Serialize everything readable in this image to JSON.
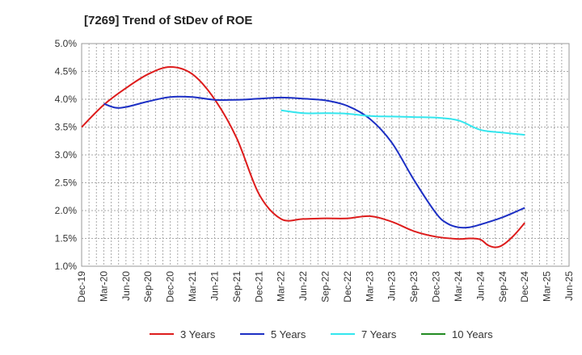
{
  "chart_data": {
    "type": "line",
    "title": "[7269]  Trend of StDev of ROE",
    "xlabel": "",
    "ylabel": "",
    "ylim": [
      1.0,
      5.0
    ],
    "yticks": [
      "1.0%",
      "1.5%",
      "2.0%",
      "2.5%",
      "3.0%",
      "3.5%",
      "4.0%",
      "4.5%",
      "5.0%"
    ],
    "ytick_values": [
      1.0,
      1.5,
      2.0,
      2.5,
      3.0,
      3.5,
      4.0,
      4.5,
      5.0
    ],
    "xticks": [
      "Dec-19",
      "Mar-20",
      "Jun-20",
      "Sep-20",
      "Dec-20",
      "Mar-21",
      "Jun-21",
      "Sep-21",
      "Dec-21",
      "Mar-22",
      "Jun-22",
      "Sep-22",
      "Dec-22",
      "Mar-23",
      "Jun-23",
      "Sep-23",
      "Dec-23",
      "Mar-24",
      "Jun-24",
      "Sep-24",
      "Dec-24",
      "Mar-25",
      "Jun-25"
    ],
    "grid": true,
    "legend_position": "bottom",
    "series": [
      {
        "name": "3 Years",
        "color": "#dd1c1c",
        "x": [
          0,
          1,
          2,
          3,
          4,
          5,
          6,
          7,
          8,
          9,
          10,
          11,
          12,
          13,
          14,
          15,
          16,
          17,
          17.5,
          18,
          18.33,
          18.67,
          19,
          19.5,
          20
        ],
        "values": [
          3.5,
          3.9,
          4.2,
          4.45,
          4.58,
          4.45,
          4.0,
          3.3,
          2.3,
          1.85,
          1.85,
          1.86,
          1.86,
          1.9,
          1.8,
          1.63,
          1.53,
          1.49,
          1.5,
          1.48,
          1.38,
          1.34,
          1.38,
          1.55,
          1.78
        ]
      },
      {
        "name": "5 Years",
        "color": "#1c2fc4",
        "x": [
          1,
          1.5,
          2,
          3,
          4,
          5,
          6,
          7,
          8,
          9,
          10,
          11,
          12,
          13,
          14,
          15,
          16,
          16.5,
          17,
          17.5,
          18,
          19,
          20
        ],
        "values": [
          3.92,
          3.85,
          3.86,
          3.96,
          4.04,
          4.04,
          3.99,
          3.99,
          4.01,
          4.03,
          4.01,
          3.98,
          3.88,
          3.65,
          3.22,
          2.55,
          1.95,
          1.77,
          1.7,
          1.7,
          1.75,
          1.88,
          2.05
        ]
      },
      {
        "name": "7 Years",
        "color": "#33e6ee",
        "x": [
          9,
          10,
          11,
          12,
          13,
          14,
          15,
          16,
          17,
          18,
          19,
          20
        ],
        "values": [
          3.8,
          3.75,
          3.75,
          3.74,
          3.7,
          3.69,
          3.68,
          3.67,
          3.62,
          3.45,
          3.4,
          3.36
        ]
      },
      {
        "name": "10 Years",
        "color": "#228b22",
        "x": [],
        "values": []
      }
    ]
  }
}
